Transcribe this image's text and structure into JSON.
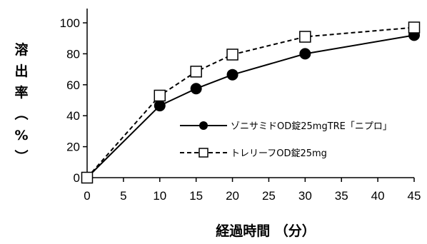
{
  "chart_data": {
    "type": "line",
    "title": "",
    "xlabel": "経過時間 （分）",
    "ylabel": "溶出率（%）",
    "xlim": [
      0,
      45
    ],
    "ylim": [
      0,
      100
    ],
    "x_ticks": [
      0,
      5,
      10,
      15,
      20,
      25,
      30,
      35,
      40,
      45
    ],
    "y_ticks": [
      0,
      20,
      40,
      60,
      80,
      100
    ],
    "x": [
      0,
      10,
      15,
      20,
      30,
      45
    ],
    "grid": false,
    "legend_position": "right",
    "series": [
      {
        "name": "ゾニサミドOD錠25mgTRE「ニプロ」",
        "values": [
          0,
          46.5,
          57.5,
          66.5,
          80,
          92
        ],
        "marker": "filled-circle",
        "line_style": "solid",
        "color": "#000000"
      },
      {
        "name": "トレリーフOD錠25mg",
        "values": [
          0,
          53,
          68.5,
          79.5,
          91,
          97
        ],
        "marker": "open-square",
        "line_style": "dashed",
        "color": "#000000"
      }
    ]
  }
}
